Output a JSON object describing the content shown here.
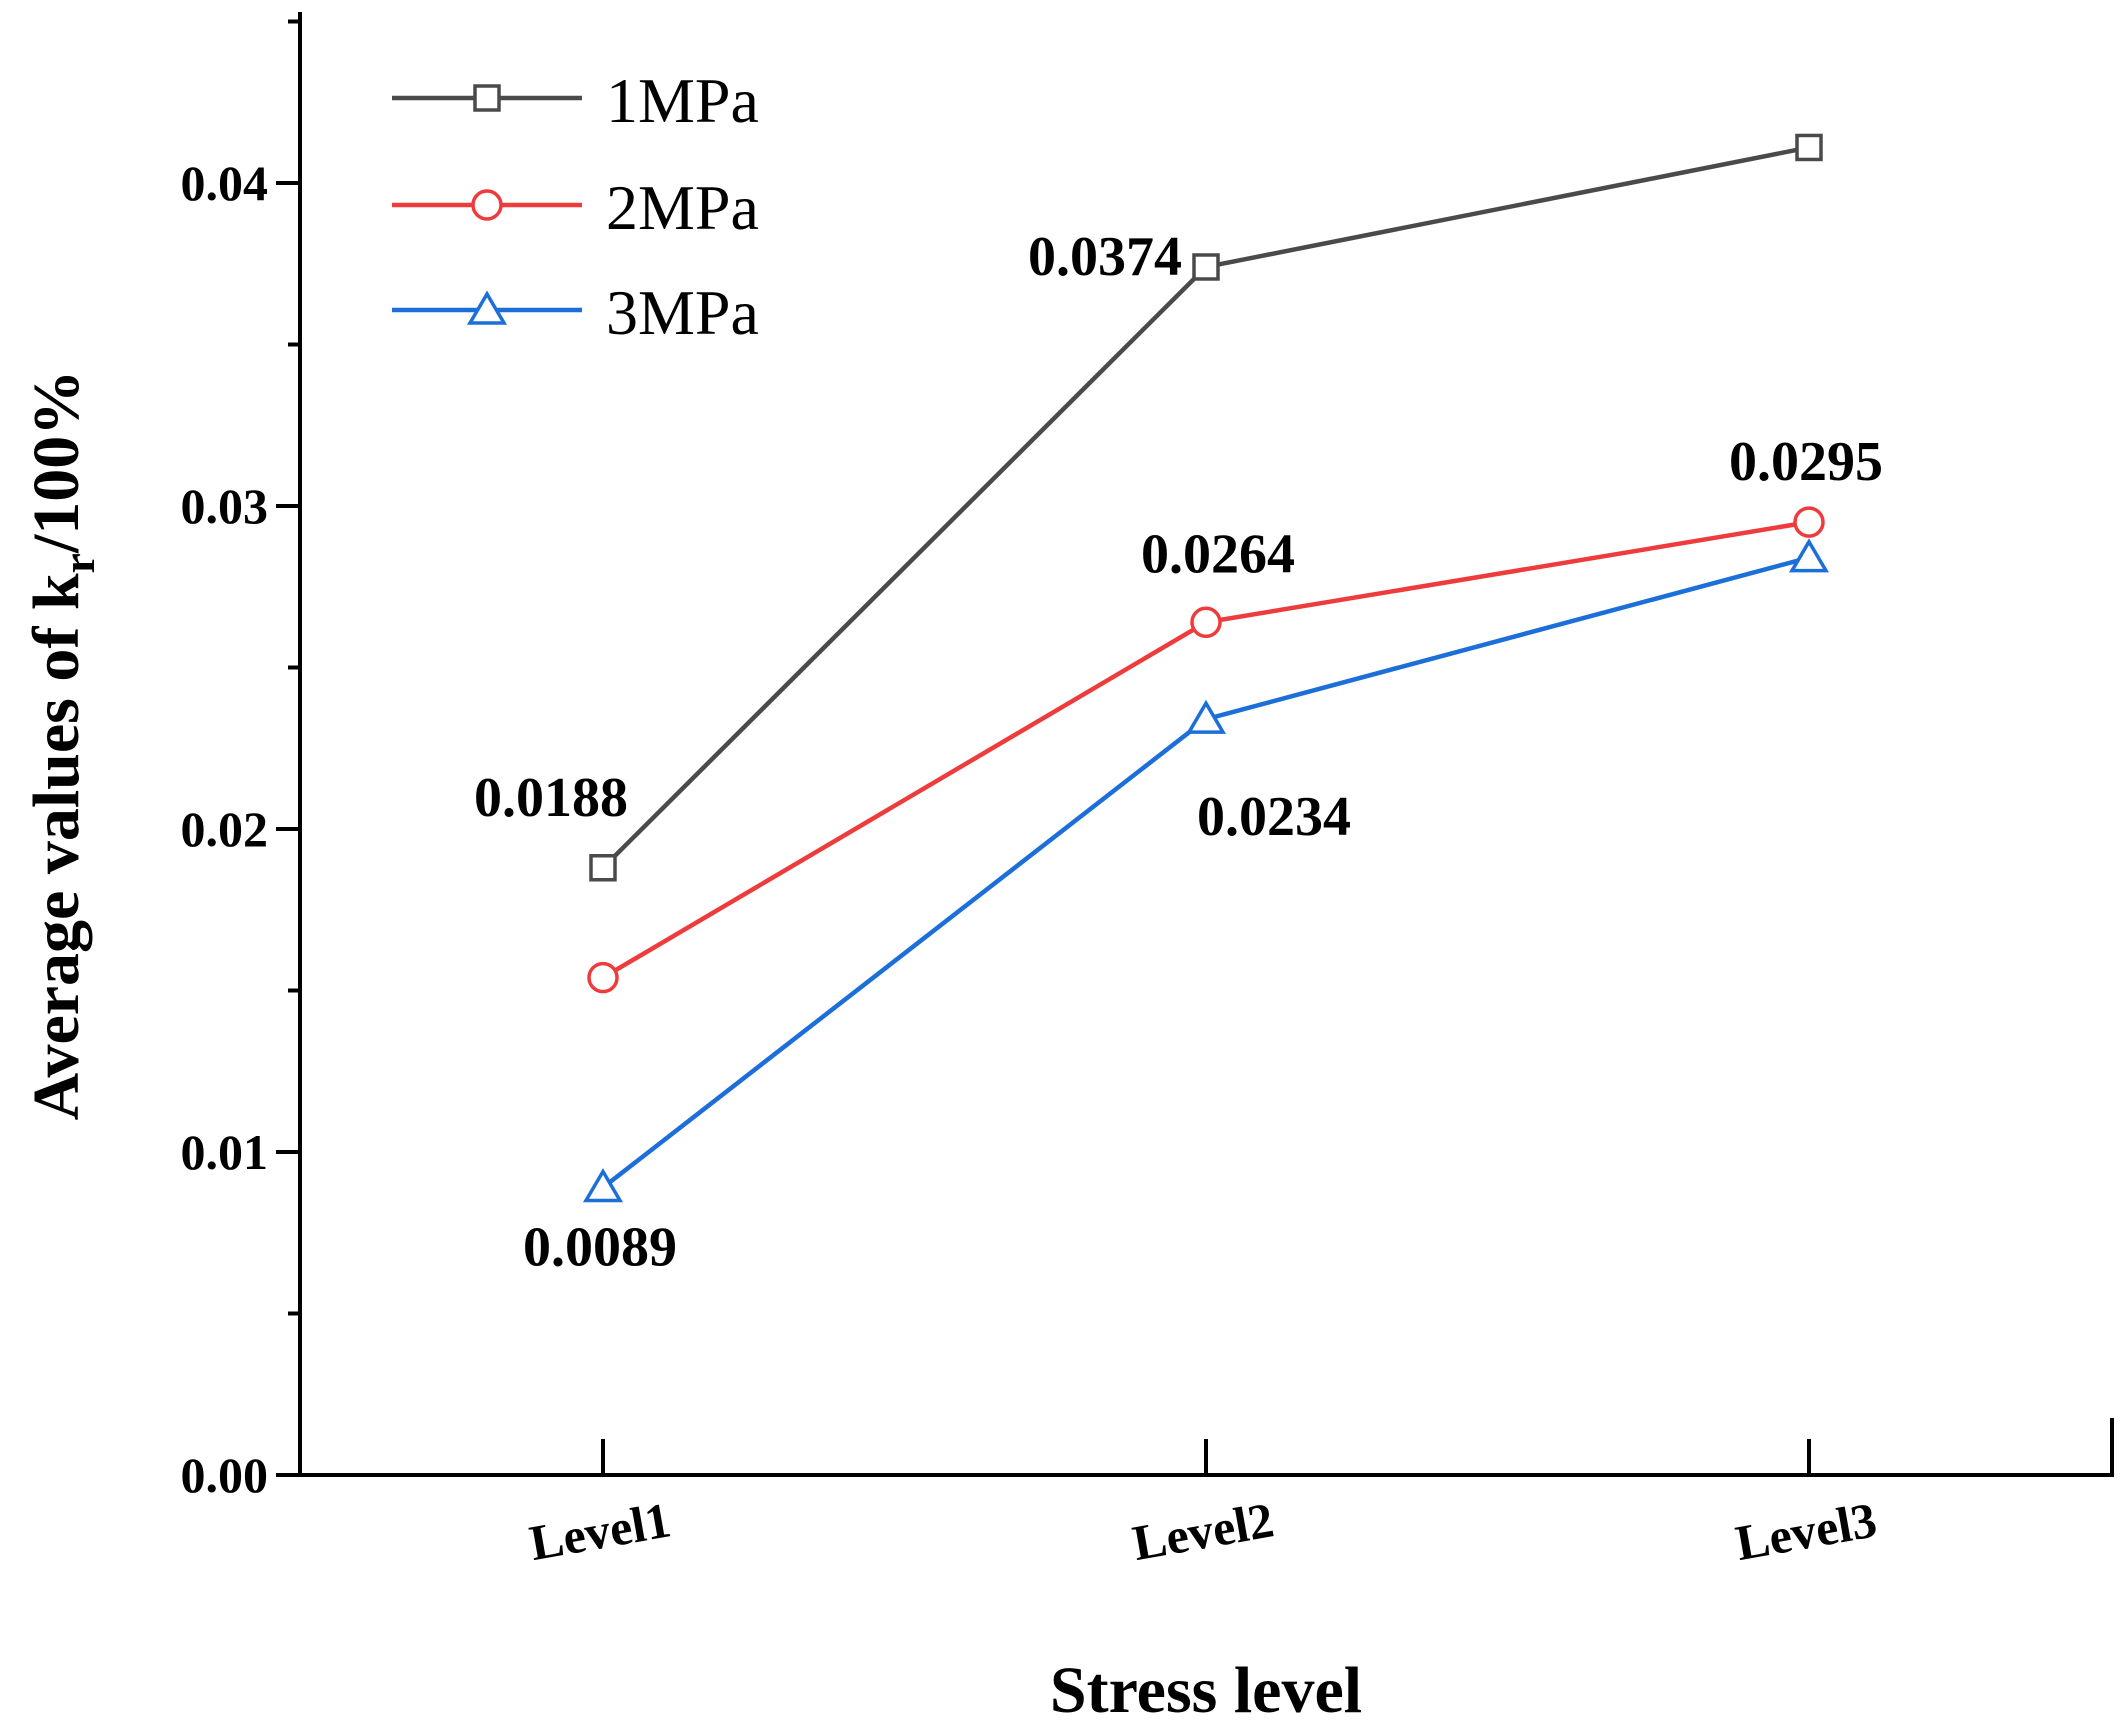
{
  "chart_data": {
    "type": "line",
    "categories": [
      "Level1",
      "Level2",
      "Level3"
    ],
    "series": [
      {
        "name": "1MPa",
        "values": [
          0.0188,
          0.0374,
          0.0411
        ],
        "color": "#4a4a4a",
        "marker": "square"
      },
      {
        "name": "2MPa",
        "values": [
          0.0154,
          0.0264,
          0.0295
        ],
        "color": "#ee3b3b",
        "marker": "circle"
      },
      {
        "name": "3MPa",
        "values": [
          0.0089,
          0.0234,
          0.0284
        ],
        "color": "#1c6fd9",
        "marker": "triangle"
      }
    ],
    "xlabel": "Stress level",
    "ylabel_main": "Average values of k",
    "ylabel_sub": "r",
    "ylabel_tail": "/100%",
    "ylim": [
      0,
      0.045
    ],
    "yticks": [
      0,
      0.01,
      0.02,
      0.03,
      0.04
    ],
    "ytick_labels": [
      "0.00",
      "0.01",
      "0.02",
      "0.03",
      "0.04"
    ],
    "data_labels": [
      {
        "series": "1MPa",
        "category": "Level1",
        "text": "0.0188"
      },
      {
        "series": "1MPa",
        "category": "Level2",
        "text": "0.0374"
      },
      {
        "series": "2MPa",
        "category": "Level2",
        "text": "0.0264"
      },
      {
        "series": "2MPa",
        "category": "Level3",
        "text": "0.0295"
      },
      {
        "series": "3MPa",
        "category": "Level1",
        "text": "0.0089"
      },
      {
        "series": "3MPa",
        "category": "Level2",
        "text": "0.0234"
      }
    ],
    "legend_position": "top-left",
    "grid": false
  }
}
